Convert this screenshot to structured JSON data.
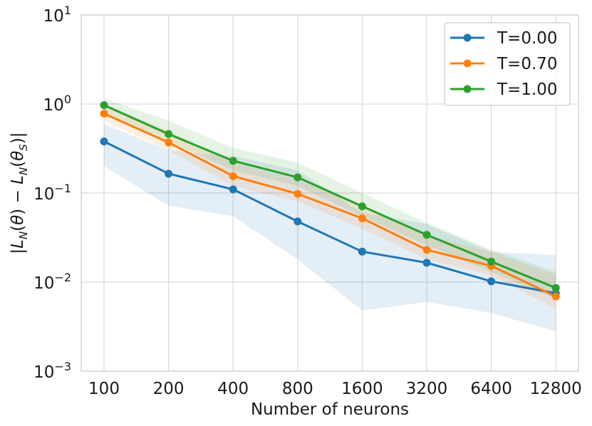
{
  "chart_data": {
    "type": "line",
    "title": "",
    "xlabel": "Number of neurons",
    "ylabel": "|L_N(θ) − L_N(θ_S)|",
    "yscale": "log",
    "ylim": [
      0.001,
      10
    ],
    "y_ticks": [
      {
        "base": "10",
        "exp": "1",
        "value": 10
      },
      {
        "base": "10",
        "exp": "0",
        "value": 1
      },
      {
        "base": "10",
        "exp": "−1",
        "value": 0.1
      },
      {
        "base": "10",
        "exp": "−2",
        "value": 0.01
      },
      {
        "base": "10",
        "exp": "−3",
        "value": 0.001
      }
    ],
    "categories": [
      "100",
      "200",
      "400",
      "800",
      "1600",
      "3200",
      "6400",
      "12800"
    ],
    "grid": true,
    "legend_position": "top-right",
    "series": [
      {
        "name": "T=0.00",
        "color": "#1f77b4",
        "values": [
          0.38,
          0.165,
          0.11,
          0.048,
          0.022,
          0.0165,
          0.0102,
          0.0075
        ],
        "band_lower": [
          0.2,
          0.072,
          0.055,
          0.018,
          0.0048,
          0.006,
          0.0045,
          0.0028
        ],
        "band_upper": [
          0.6,
          0.3,
          0.26,
          0.18,
          0.06,
          0.045,
          0.022,
          0.02
        ]
      },
      {
        "name": "T=0.70",
        "color": "#ff7f0e",
        "values": [
          0.78,
          0.37,
          0.155,
          0.098,
          0.052,
          0.023,
          0.0152,
          0.0069
        ],
        "band_lower": [
          0.65,
          0.3,
          0.12,
          0.08,
          0.04,
          0.018,
          0.012,
          0.005
        ],
        "band_upper": [
          1.0,
          0.5,
          0.22,
          0.14,
          0.075,
          0.033,
          0.022,
          0.012
        ]
      },
      {
        "name": "T=1.00",
        "color": "#2ca02c",
        "values": [
          0.97,
          0.46,
          0.23,
          0.15,
          0.071,
          0.034,
          0.017,
          0.0086
        ],
        "band_lower": [
          0.8,
          0.38,
          0.18,
          0.12,
          0.055,
          0.026,
          0.013,
          0.0065
        ],
        "band_upper": [
          1.15,
          0.65,
          0.32,
          0.22,
          0.1,
          0.046,
          0.023,
          0.013
        ]
      }
    ]
  }
}
